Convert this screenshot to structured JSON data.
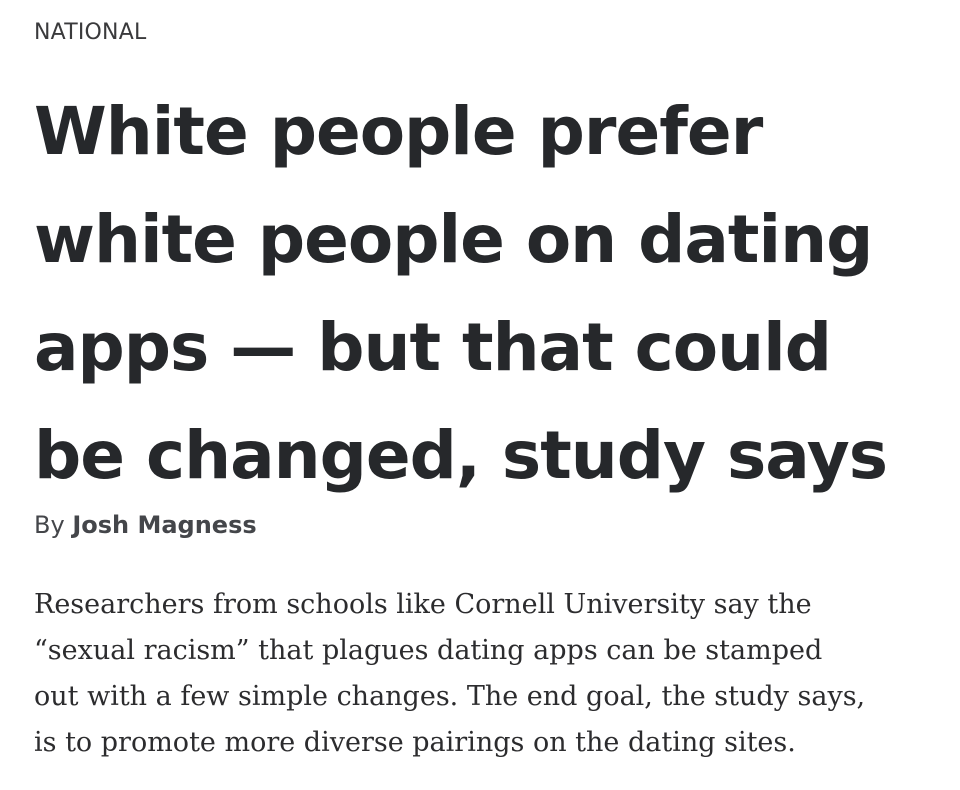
{
  "section": {
    "label": "NATIONAL"
  },
  "headline": {
    "lines": [
      "White people prefer",
      "white people on dating",
      "apps — but that could",
      "be changed, study says"
    ]
  },
  "byline": {
    "prefix": "By",
    "author": "Josh Magness"
  },
  "dek": {
    "lines": [
      "Researchers from schools like Cornell University say the",
      "“sexual racism” that plagues dating apps can be stamped",
      "out with a few simple changes. The end goal, the study says,",
      "is to promote more diverse pairings on the dating sites."
    ]
  }
}
